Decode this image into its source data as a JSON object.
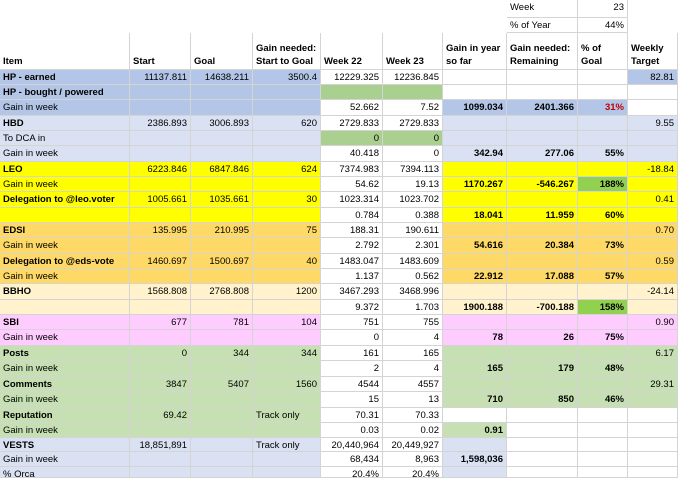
{
  "summary": {
    "week_label": "Week",
    "week_value": "23",
    "year_label": "% of Year",
    "year_value": "44%"
  },
  "headers": {
    "item": "Item",
    "start": "Start",
    "goal": "Goal",
    "gain_needed_start_1": "Gain needed:",
    "gain_needed_start_2": "Start to Goal",
    "week22": "Week 22",
    "week23": "Week 23",
    "gain_year_1": "Gain in year",
    "gain_year_2": "so far",
    "gain_remaining_1": "Gain needed:",
    "gain_remaining_2": "Remaining",
    "pct_goal": "% of Goal",
    "weekly_1": "Weekly",
    "weekly_2": "Target"
  },
  "rows": {
    "hp_earned": {
      "label": "HP - earned",
      "start": "11137.811",
      "goal": "14638.211",
      "needed": "3500.4",
      "w22": "12229.325",
      "w23": "12236.845",
      "weekly": "82.81"
    },
    "hp_bought": {
      "label": "HP - bought / powered"
    },
    "hp_gain": {
      "label": "Gain in week",
      "w22": "52.662",
      "w23": "7.52",
      "year": "1099.034",
      "remaining": "2401.366",
      "pct": "31%"
    },
    "hbd": {
      "label": "HBD",
      "start": "2386.893",
      "goal": "3006.893",
      "needed": "620",
      "w22": "2729.833",
      "w23": "2729.833",
      "weekly": "9.55"
    },
    "hbd_dca": {
      "label": "To DCA in",
      "w22": "0",
      "w23": "0"
    },
    "hbd_gain": {
      "label": "Gain in week",
      "w22": "40.418",
      "w23": "0",
      "year": "342.94",
      "remaining": "277.06",
      "pct": "55%"
    },
    "leo": {
      "label": "LEO",
      "start": "6223.846",
      "goal": "6847.846",
      "needed": "624",
      "w22": "7374.983",
      "w23": "7394.113",
      "weekly": "-18.84"
    },
    "leo_gain": {
      "label": "Gain in week",
      "w22": "54.62",
      "w23": "19.13",
      "year": "1170.267",
      "remaining": "-546.267",
      "pct": "188%"
    },
    "leo_deleg": {
      "label": "Delegation to @leo.voter",
      "start": "1005.661",
      "goal": "1035.661",
      "needed": "30",
      "w22": "1023.314",
      "w23": "1023.702",
      "weekly": "0.41"
    },
    "leo_deleg_gain": {
      "w22": "0.784",
      "w23": "0.388",
      "year": "18.041",
      "remaining": "11.959",
      "pct": "60%"
    },
    "edsi": {
      "label": "EDSI",
      "start": "135.995",
      "goal": "210.995",
      "needed": "75",
      "w22": "188.31",
      "w23": "190.611",
      "weekly": "0.70"
    },
    "edsi_gain": {
      "label": "Gain in week",
      "w22": "2.792",
      "w23": "2.301",
      "year": "54.616",
      "remaining": "20.384",
      "pct": "73%"
    },
    "eds_deleg": {
      "label": "Delegation to @eds-vote",
      "start": "1460.697",
      "goal": "1500.697",
      "needed": "40",
      "w22": "1483.047",
      "w23": "1483.609",
      "weekly": "0.59"
    },
    "eds_deleg_gain": {
      "label": "Gain in week",
      "w22": "1.137",
      "w23": "0.562",
      "year": "22.912",
      "remaining": "17.088",
      "pct": "57%"
    },
    "bbho": {
      "label": "BBHO",
      "start": "1568.808",
      "goal": "2768.808",
      "needed": "1200",
      "w22": "3467.293",
      "w23": "3468.996",
      "weekly": "-24.14"
    },
    "bbho_gain": {
      "w22": "9.372",
      "w23": "1.703",
      "year": "1900.188",
      "remaining": "-700.188",
      "pct": "158%"
    },
    "sbi": {
      "label": "SBI",
      "start": "677",
      "goal": "781",
      "needed": "104",
      "w22": "751",
      "w23": "755",
      "weekly": "0.90"
    },
    "sbi_gain": {
      "label": "Gain in week",
      "w22": "0",
      "w23": "4",
      "year": "78",
      "remaining": "26",
      "pct": "75%"
    },
    "posts": {
      "label": "Posts",
      "start": "0",
      "goal": "344",
      "needed": "344",
      "w22": "161",
      "w23": "165",
      "weekly": "6.17"
    },
    "posts_gain": {
      "label": "Gain in week",
      "w22": "2",
      "w23": "4",
      "year": "165",
      "remaining": "179",
      "pct": "48%"
    },
    "comments": {
      "label": "Comments",
      "start": "3847",
      "goal": "5407",
      "needed": "1560",
      "w22": "4544",
      "w23": "4557",
      "weekly": "29.31"
    },
    "comments_gain": {
      "label": "Gain in week",
      "w22": "15",
      "w23": "13",
      "year": "710",
      "remaining": "850",
      "pct": "46%"
    },
    "reputation": {
      "label": "Reputation",
      "start": "69.42",
      "needed": "Track only",
      "w22": "70.31",
      "w23": "70.33"
    },
    "reputation_gain": {
      "label": "Gain in week",
      "w22": "0.03",
      "w23": "0.02",
      "year": "0.91"
    },
    "vests": {
      "label": "VESTS",
      "start": "18,851,891",
      "needed": "Track only",
      "w22": "20,440,964",
      "w23": "20,449,927"
    },
    "vests_gain": {
      "label": "Gain in week",
      "w22": "68,434",
      "w23": "8,963",
      "year": "1,598,036"
    },
    "vests_orca": {
      "label": "% Orca",
      "w22": "20.4%",
      "w23": "20.4%"
    }
  }
}
